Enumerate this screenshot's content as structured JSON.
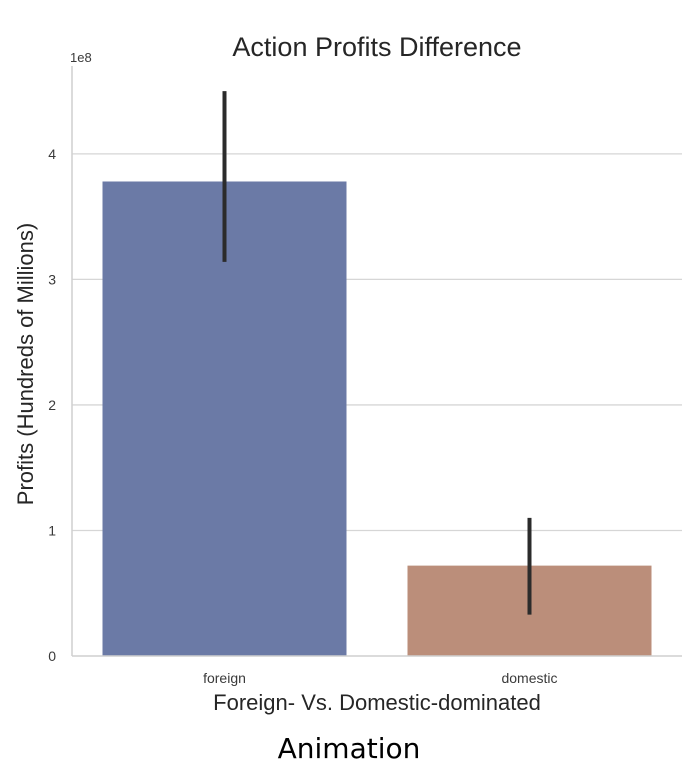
{
  "chart_data": {
    "type": "bar",
    "title": "Action Profits Difference",
    "xlabel": "Foreign- Vs. Domestic-dominated",
    "ylabel": "Profits (Hundreds of Millions)",
    "y_offset_label": "1e8",
    "categories": [
      "foreign",
      "domestic"
    ],
    "values": [
      3.78,
      0.72
    ],
    "error_low": [
      3.14,
      0.33
    ],
    "error_high": [
      4.5,
      1.1
    ],
    "ylim": [
      0,
      4.7
    ],
    "yticks": [
      "0",
      "1",
      "2",
      "3",
      "4"
    ],
    "grid": true,
    "colors": [
      "#6b7aa6",
      "#bb8e7a"
    ],
    "error_color": "#2b2b2b"
  },
  "caption": "Animation"
}
